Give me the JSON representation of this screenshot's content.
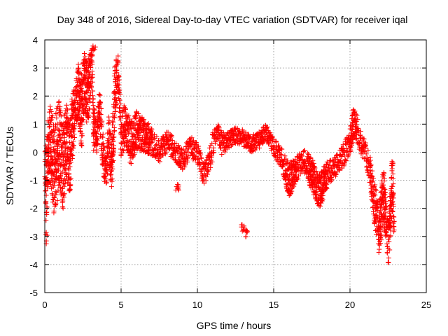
{
  "chart_data": {
    "type": "scatter",
    "title": "Day 348 of 2016, Sidereal Day-to-day VTEC variation (SDTVAR) for receiver iqal",
    "xlabel": "GPS time / hours",
    "ylabel": "SDTVAR / TECUs",
    "xlim": [
      0,
      25
    ],
    "ylim": [
      -5,
      4
    ],
    "xticks": [
      "0",
      "5",
      "10",
      "15",
      "20",
      "25"
    ],
    "yticks": [
      "-5",
      "-4",
      "-3",
      "-2",
      "-1",
      "0",
      "1",
      "2",
      "3",
      "4"
    ],
    "xtick_values": [
      0,
      5,
      10,
      15,
      20,
      25
    ],
    "ytick_values": [
      -5,
      -4,
      -3,
      -2,
      -1,
      0,
      1,
      2,
      3,
      4
    ],
    "grid": true,
    "marker": "+",
    "marker_color": "#ff0000",
    "series": [
      {
        "name": "SDTVAR",
        "description_of_trace": "dense scatter, approximate envelope [x_hours, y_center, spread]",
        "trace": [
          [
            0.0,
            -0.3,
            0.8
          ],
          [
            0.1,
            -1.5,
            1.6
          ],
          [
            0.2,
            0.0,
            1.2
          ],
          [
            0.4,
            0.3,
            1.5
          ],
          [
            0.6,
            -0.6,
            1.6
          ],
          [
            0.8,
            0.0,
            1.8
          ],
          [
            1.0,
            0.2,
            1.6
          ],
          [
            1.2,
            -0.5,
            1.6
          ],
          [
            1.4,
            0.6,
            1.4
          ],
          [
            1.6,
            -0.4,
            1.4
          ],
          [
            1.8,
            0.8,
            1.2
          ],
          [
            2.0,
            1.6,
            0.8
          ],
          [
            2.2,
            2.2,
            1.0
          ],
          [
            2.4,
            1.4,
            1.4
          ],
          [
            2.6,
            2.6,
            1.0
          ],
          [
            2.8,
            2.0,
            1.2
          ],
          [
            3.0,
            2.8,
            0.9
          ],
          [
            3.1,
            3.2,
            0.6
          ],
          [
            3.2,
            1.0,
            1.0
          ],
          [
            3.4,
            0.4,
            0.6
          ],
          [
            3.6,
            1.6,
            0.8
          ],
          [
            3.8,
            0.0,
            0.7
          ],
          [
            4.0,
            -0.8,
            0.6
          ],
          [
            4.2,
            0.5,
            0.8
          ],
          [
            4.4,
            -0.5,
            1.0
          ],
          [
            4.6,
            2.2,
            1.2
          ],
          [
            4.8,
            3.0,
            0.5
          ],
          [
            5.0,
            0.6,
            0.8
          ],
          [
            5.3,
            1.0,
            0.8
          ],
          [
            5.6,
            0.3,
            0.8
          ],
          [
            6.0,
            0.8,
            0.7
          ],
          [
            6.5,
            0.6,
            0.6
          ],
          [
            7.0,
            0.4,
            0.5
          ],
          [
            7.5,
            0.0,
            0.4
          ],
          [
            8.0,
            0.4,
            0.4
          ],
          [
            8.5,
            0.1,
            0.4
          ],
          [
            9.0,
            -0.3,
            0.4
          ],
          [
            9.5,
            0.2,
            0.4
          ],
          [
            10.0,
            0.0,
            0.4
          ],
          [
            10.4,
            -0.8,
            0.4
          ],
          [
            10.7,
            -0.5,
            0.4
          ],
          [
            11.0,
            0.2,
            0.5
          ],
          [
            11.3,
            0.8,
            0.3
          ],
          [
            11.6,
            0.3,
            0.4
          ],
          [
            12.0,
            0.4,
            0.3
          ],
          [
            12.5,
            0.6,
            0.3
          ],
          [
            13.0,
            0.5,
            0.3
          ],
          [
            13.5,
            0.3,
            0.3
          ],
          [
            14.0,
            0.4,
            0.3
          ],
          [
            14.5,
            0.7,
            0.3
          ],
          [
            15.0,
            0.2,
            0.3
          ],
          [
            15.5,
            -0.2,
            0.4
          ],
          [
            16.0,
            -1.0,
            0.6
          ],
          [
            16.5,
            -0.6,
            0.5
          ],
          [
            17.0,
            -0.3,
            0.4
          ],
          [
            17.5,
            -0.8,
            0.6
          ],
          [
            18.0,
            -1.4,
            0.6
          ],
          [
            18.5,
            -0.8,
            0.5
          ],
          [
            19.0,
            -0.5,
            0.4
          ],
          [
            19.5,
            -0.2,
            0.4
          ],
          [
            20.0,
            0.4,
            0.5
          ],
          [
            20.3,
            1.2,
            0.6
          ],
          [
            20.6,
            0.5,
            0.4
          ],
          [
            21.0,
            0.0,
            0.4
          ],
          [
            21.3,
            -0.6,
            0.5
          ],
          [
            21.6,
            -1.8,
            0.8
          ],
          [
            21.9,
            -2.8,
            0.9
          ],
          [
            22.2,
            -1.5,
            1.0
          ],
          [
            22.5,
            -3.3,
            0.8
          ],
          [
            22.8,
            -1.0,
            1.2
          ],
          [
            22.9,
            -3.0,
            0.6
          ]
        ],
        "outliers": [
          [
            8.7,
            -1.3,
            0.15
          ],
          [
            13.0,
            -2.7,
            0.15
          ],
          [
            13.2,
            -2.9,
            0.12
          ],
          [
            0.05,
            -3.1,
            0.2
          ],
          [
            3.2,
            3.7,
            0.1
          ]
        ]
      }
    ]
  }
}
